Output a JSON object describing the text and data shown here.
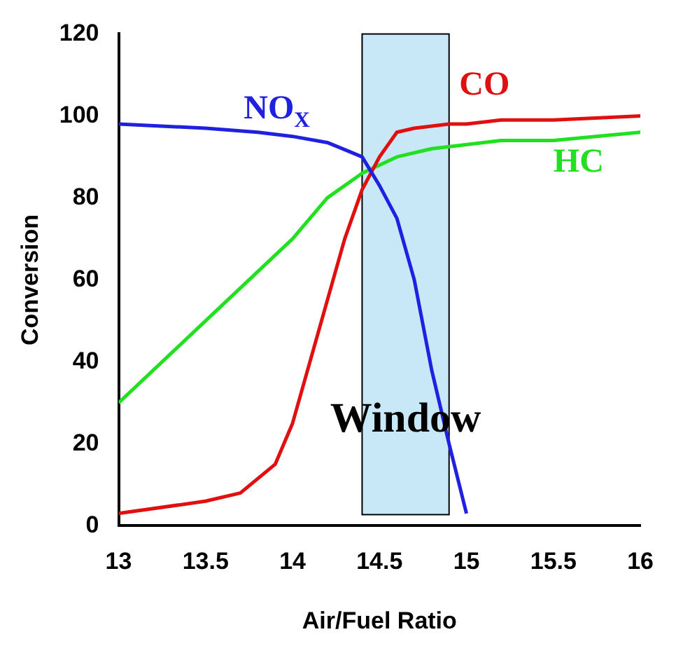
{
  "chart_data": {
    "type": "line",
    "xlabel": "Air/Fuel Ratio",
    "ylabel": "Conversion",
    "xlim": [
      13,
      16
    ],
    "xticks": [
      13,
      13.5,
      14,
      14.5,
      15,
      15.5,
      16
    ],
    "ylim": [
      0,
      120
    ],
    "yticks": [
      0,
      20,
      40,
      60,
      80,
      100,
      120
    ],
    "grid": false,
    "legend": false,
    "marker": "none",
    "line_style": "solid",
    "series": [
      {
        "name": "NO$_{X}$",
        "color": "#2020e0",
        "x": [
          13,
          13.5,
          13.8,
          14,
          14.2,
          14.4,
          14.5,
          14.6,
          14.7,
          14.8,
          14.9,
          15
        ],
        "values": [
          98,
          97,
          96,
          95,
          93.5,
          90,
          83,
          75,
          60,
          38,
          20,
          3
        ]
      },
      {
        "name": "CO",
        "color": "#e01010",
        "x": [
          13,
          13.5,
          13.7,
          13.9,
          14,
          14.1,
          14.2,
          14.3,
          14.4,
          14.5,
          14.6,
          14.7,
          14.9,
          15,
          15.2,
          15.5,
          16
        ],
        "values": [
          3,
          6,
          8,
          15,
          25,
          40,
          55,
          70,
          82,
          90,
          96,
          97,
          98,
          98,
          99,
          99,
          100
        ]
      },
      {
        "name": "HC",
        "color": "#20e020",
        "x": [
          13,
          13.5,
          14,
          14.2,
          14.4,
          14.6,
          14.8,
          15.2,
          15.5,
          16
        ],
        "values": [
          30,
          50,
          70,
          80,
          86,
          90,
          92,
          94,
          94,
          96
        ]
      }
    ],
    "bands": [
      {
        "axis": "x",
        "from": 14.4,
        "to": 14.9,
        "label": "Window",
        "color": "#c8e8f8"
      }
    ]
  }
}
